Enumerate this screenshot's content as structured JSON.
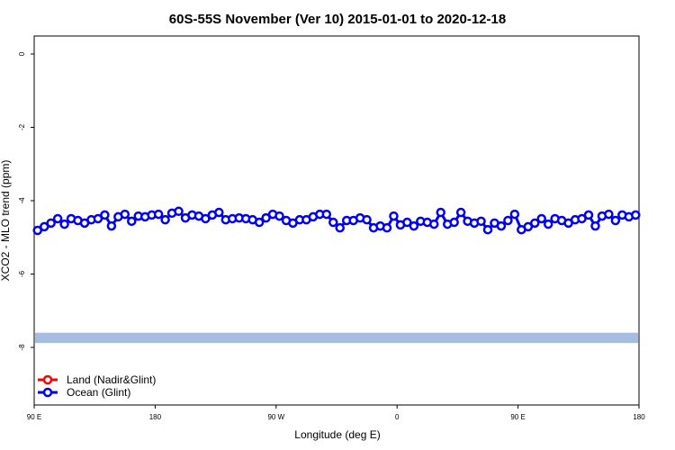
{
  "chart_data": {
    "type": "line",
    "title": "60S-55S November (Ver 10)   2015-01-01 to 2020-12-18",
    "x_label": "Longitude (deg E)",
    "y_label": "XCO2 - MLO trend (ppm)",
    "x": [
      92.5,
      97.5,
      102.5,
      107.5,
      112.5,
      117.5,
      122.5,
      127.5,
      132.5,
      137.5,
      142.5,
      147.5,
      152.5,
      157.5,
      162.5,
      167.5,
      172.5,
      177.5,
      182.5,
      187.5,
      192.5,
      197.5,
      202.5,
      207.5,
      212.5,
      217.5,
      222.5,
      227.5,
      232.5,
      237.5,
      242.5,
      247.5,
      252.5,
      257.5,
      262.5,
      267.5,
      272.5,
      277.5,
      282.5,
      287.5,
      292.5,
      297.5,
      302.5,
      307.5,
      312.5,
      317.5,
      322.5,
      327.5,
      332.5,
      337.5,
      342.5,
      347.5,
      352.5,
      357.5,
      362.5,
      367.5,
      372.5,
      377.5,
      382.5,
      387.5,
      392.5,
      397.5,
      402.5,
      407.5,
      412.5,
      417.5,
      422.5,
      427.5,
      432.5,
      437.5,
      442.5,
      447.5,
      452.5,
      457.5,
      462.5,
      467.5,
      472.5,
      477.5,
      482.5,
      487.5,
      492.5,
      497.5,
      502.5,
      507.5,
      512.5,
      517.5,
      522.5,
      527.5,
      532.5,
      537.5
    ],
    "series": [
      {
        "name": "Land (Nadir&Glint)",
        "color": "#ff0000",
        "values": [
          null,
          null,
          null,
          null,
          null,
          null,
          null,
          null,
          null,
          null,
          null,
          null,
          null,
          null,
          null,
          null,
          null,
          null,
          null,
          null,
          null,
          null,
          null,
          null,
          null,
          null,
          null,
          null,
          null,
          null,
          null,
          null,
          null,
          null,
          null,
          null,
          null,
          null,
          null,
          null,
          null,
          null,
          null,
          null,
          null,
          null,
          null,
          null,
          null,
          null,
          null,
          null,
          null,
          null,
          null,
          null,
          null,
          null,
          null,
          null,
          null,
          null,
          null,
          null,
          null,
          null,
          null,
          null,
          null,
          null,
          null,
          null,
          null,
          null,
          null,
          null,
          null,
          null,
          null,
          null,
          null,
          null,
          null,
          null,
          null,
          null,
          null,
          null,
          null,
          null
        ]
      },
      {
        "name": "Ocean (Glint)",
        "color": "#0000ee",
        "values": [
          -4.81,
          -4.71,
          -4.61,
          -4.49,
          -4.64,
          -4.49,
          -4.54,
          -4.61,
          -4.52,
          -4.49,
          -4.39,
          -4.69,
          -4.44,
          -4.37,
          -4.56,
          -4.42,
          -4.44,
          -4.39,
          -4.37,
          -4.52,
          -4.34,
          -4.29,
          -4.47,
          -4.39,
          -4.42,
          -4.49,
          -4.39,
          -4.32,
          -4.52,
          -4.49,
          -4.47,
          -4.49,
          -4.52,
          -4.59,
          -4.47,
          -4.37,
          -4.42,
          -4.54,
          -4.61,
          -4.52,
          -4.52,
          -4.44,
          -4.37,
          -4.37,
          -4.59,
          -4.74,
          -4.54,
          -4.54,
          -4.47,
          -4.52,
          -4.74,
          -4.69,
          -4.74,
          -4.42,
          -4.66,
          -4.59,
          -4.69,
          -4.56,
          -4.59,
          -4.64,
          -4.32,
          -4.64,
          -4.59,
          -4.32,
          -4.56,
          -4.61,
          -4.56,
          -4.79,
          -4.61,
          -4.69,
          -4.54,
          -4.37,
          -4.79,
          -4.71,
          -4.61,
          -4.49,
          -4.64,
          -4.49,
          -4.54,
          -4.61,
          -4.52,
          -4.49,
          -4.39,
          -4.69,
          -4.42,
          -4.37,
          -4.54,
          -4.39,
          -4.44,
          -4.39
        ]
      }
    ],
    "band": {
      "ylim": [
        -7.88,
        -7.6
      ],
      "color": "#a6bddf"
    },
    "xlim": [
      90,
      540
    ],
    "xticks": [
      {
        "value": 90,
        "label": "90 E"
      },
      {
        "value": 180,
        "label": "180"
      },
      {
        "value": 270,
        "label": "90 W"
      },
      {
        "value": 360,
        "label": "0"
      },
      {
        "value": 450,
        "label": "90 E"
      },
      {
        "value": 540,
        "label": "180"
      }
    ],
    "ylim": [
      -9.57,
      0.49
    ],
    "yticks": [
      0,
      -2,
      -4,
      -6,
      -8
    ],
    "legend": "bottom-left"
  }
}
